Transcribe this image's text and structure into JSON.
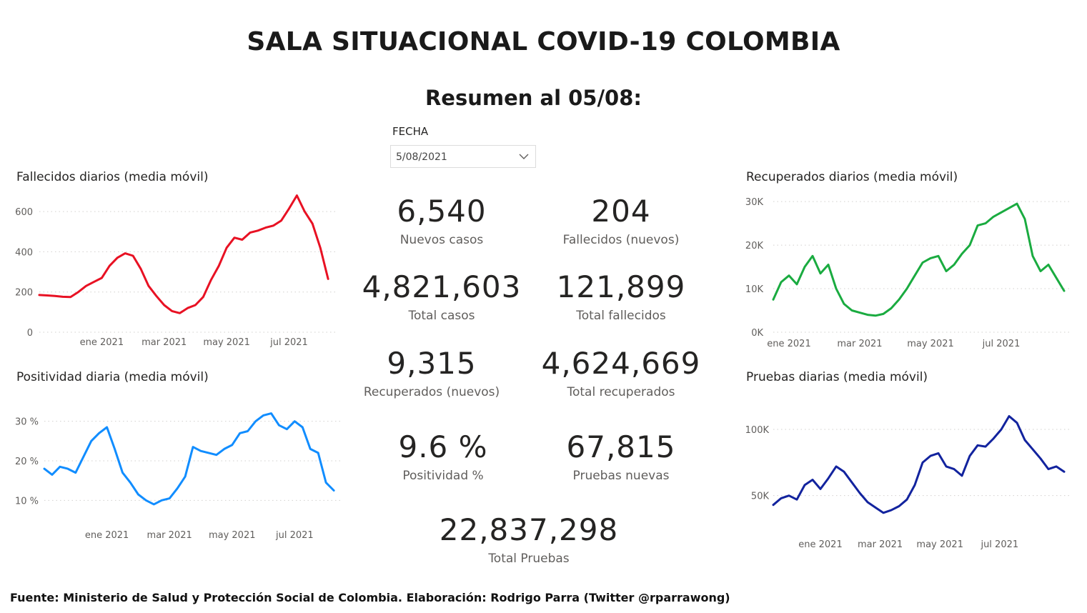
{
  "header": {
    "title": "SALA SITUACIONAL COVID-19 COLOMBIA",
    "subtitle": "Resumen al 05/08:"
  },
  "filter": {
    "label": "FECHA",
    "value": "5/08/2021",
    "icon": "chevron-down-icon"
  },
  "kpis": {
    "nuevos_casos": {
      "value": "6,540",
      "label": "Nuevos casos"
    },
    "fallecidos_nuevos": {
      "value": "204",
      "label": "Fallecidos (nuevos)"
    },
    "total_casos": {
      "value": "4,821,603",
      "label": "Total casos"
    },
    "total_fallecidos": {
      "value": "121,899",
      "label": "Total fallecidos"
    },
    "recuperados_nuevos": {
      "value": "9,315",
      "label": "Recuperados (nuevos)"
    },
    "total_recuperados": {
      "value": "4,624,669",
      "label": "Total recuperados"
    },
    "positividad": {
      "value": "9.6 %",
      "label": "Positividad %"
    },
    "pruebas_nuevas": {
      "value": "67,815",
      "label": "Pruebas nuevas"
    },
    "total_pruebas": {
      "value": "22,837,298",
      "label": "Total Pruebas"
    }
  },
  "footer": {
    "text": "Fuente: Ministerio de Salud y Protección Social de Colombia. Elaboración: Rodrigo Parra (Twitter @rparrawong)"
  },
  "chart_data": [
    {
      "id": "fallecidos",
      "type": "line",
      "title": "Fallecidos diarios (media móvil)",
      "color": "#e81123",
      "xlim": [
        0,
        19
      ],
      "ylim": [
        0,
        650
      ],
      "y_ticks": [
        0,
        200,
        400,
        600
      ],
      "y_tick_labels": [
        "0",
        "200",
        "400",
        "600"
      ],
      "x_ticks": [
        4,
        8,
        12,
        16
      ],
      "x_tick_labels": [
        "ene 2021",
        "mar 2021",
        "may 2021",
        "jul 2021"
      ],
      "grid": true,
      "legend": "none",
      "x": [
        0,
        0.5,
        1,
        1.5,
        2,
        2.5,
        3,
        3.5,
        4,
        4.5,
        5,
        5.5,
        6,
        6.5,
        7,
        7.5,
        8,
        8.5,
        9,
        9.5,
        10,
        10.5,
        11,
        11.5,
        12,
        12.5,
        13,
        13.5,
        14,
        14.5,
        15,
        15.5,
        16,
        16.5,
        17,
        17.5,
        18,
        18.5
      ],
      "y": [
        185,
        183,
        180,
        176,
        175,
        200,
        230,
        250,
        270,
        330,
        370,
        392,
        380,
        315,
        230,
        180,
        135,
        105,
        95,
        120,
        135,
        175,
        260,
        330,
        420,
        470,
        460,
        495,
        505,
        520,
        530,
        555,
        615,
        680,
        600,
        540,
        420,
        265
      ]
    },
    {
      "id": "positividad",
      "type": "line",
      "title": "Positividad diaria (media móvil)",
      "color": "#118dff",
      "xlim": [
        0,
        19
      ],
      "ylim": [
        5,
        35
      ],
      "y_ticks": [
        10,
        20,
        30
      ],
      "y_tick_labels": [
        "10 %",
        "20 %",
        "30 %"
      ],
      "x_ticks": [
        4,
        8,
        12,
        16
      ],
      "x_tick_labels": [
        "ene 2021",
        "mar 2021",
        "may 2021",
        "jul 2021"
      ],
      "grid": true,
      "legend": "none",
      "x": [
        0,
        0.5,
        1,
        1.5,
        2,
        2.5,
        3,
        3.5,
        4,
        4.5,
        5,
        5.5,
        6,
        6.5,
        7,
        7.5,
        8,
        8.5,
        9,
        9.5,
        10,
        10.5,
        11,
        11.5,
        12,
        12.5,
        13,
        13.5,
        14,
        14.5,
        15,
        15.5,
        16,
        16.5,
        17,
        17.5,
        18,
        18.5
      ],
      "y": [
        18,
        16.5,
        18.5,
        18,
        17,
        21,
        25,
        27,
        28.5,
        23,
        17,
        14.5,
        11.5,
        10,
        9,
        10,
        10.5,
        13,
        16,
        23.5,
        22.5,
        22,
        21.5,
        23,
        24,
        27,
        27.5,
        30,
        31.5,
        32,
        29,
        28,
        30,
        28.5,
        23,
        22,
        14.5,
        12.5
      ]
    },
    {
      "id": "recuperados",
      "type": "line",
      "title": "Recuperados diarios (media móvil)",
      "color": "#1aab40",
      "xlim": [
        0,
        19
      ],
      "ylim": [
        0,
        31000
      ],
      "y_ticks": [
        0,
        10000,
        20000,
        30000
      ],
      "y_tick_labels": [
        "0K",
        "10K",
        "20K",
        "30K"
      ],
      "x_ticks": [
        1,
        5.5,
        10,
        14.5
      ],
      "x_tick_labels": [
        "ene 2021",
        "mar 2021",
        "may 2021",
        "jul 2021"
      ],
      "grid": true,
      "legend": "none",
      "x": [
        0,
        0.5,
        1,
        1.5,
        2,
        2.5,
        3,
        3.5,
        4,
        4.5,
        5,
        5.5,
        6,
        6.5,
        7,
        7.5,
        8,
        8.5,
        9,
        9.5,
        10,
        10.5,
        11,
        11.5,
        12,
        12.5,
        13,
        13.5,
        14,
        14.5,
        15,
        15.5,
        16,
        16.5,
        17,
        17.5,
        18,
        18.5
      ],
      "y": [
        7500,
        11500,
        13000,
        11000,
        15000,
        17500,
        13500,
        15500,
        10000,
        6500,
        5000,
        4500,
        4000,
        3800,
        4200,
        5500,
        7500,
        10000,
        13000,
        16000,
        17000,
        17500,
        14000,
        15500,
        18000,
        20000,
        24500,
        25000,
        26500,
        27500,
        28500,
        29500,
        26000,
        17500,
        14000,
        15500,
        12500,
        9500
      ]
    },
    {
      "id": "pruebas",
      "type": "line",
      "title": "Pruebas diarias (media móvil)",
      "color": "#12239e",
      "xlim": [
        0,
        19
      ],
      "ylim": [
        25000,
        120000
      ],
      "y_ticks": [
        50000,
        100000
      ],
      "y_tick_labels": [
        "50K",
        "100K"
      ],
      "x_ticks": [
        3,
        6.8,
        10.6,
        14.4
      ],
      "x_tick_labels": [
        "ene 2021",
        "mar 2021",
        "may 2021",
        "jul 2021"
      ],
      "grid": true,
      "legend": "none",
      "x": [
        0,
        0.5,
        1,
        1.5,
        2,
        2.5,
        3,
        3.5,
        4,
        4.5,
        5,
        5.5,
        6,
        6.5,
        7,
        7.5,
        8,
        8.5,
        9,
        9.5,
        10,
        10.5,
        11,
        11.5,
        12,
        12.5,
        13,
        13.5,
        14,
        14.5,
        15,
        15.5,
        16,
        16.5,
        17,
        17.5,
        18,
        18.5
      ],
      "y": [
        43000,
        48000,
        50000,
        47000,
        58000,
        62000,
        55000,
        63000,
        72000,
        68000,
        60000,
        52000,
        45000,
        41000,
        37000,
        39000,
        42000,
        47000,
        58000,
        75000,
        80000,
        82000,
        72000,
        70000,
        65000,
        80000,
        88000,
        87000,
        93000,
        100000,
        110000,
        105000,
        92000,
        85000,
        78000,
        70000,
        72000,
        68000
      ]
    }
  ]
}
